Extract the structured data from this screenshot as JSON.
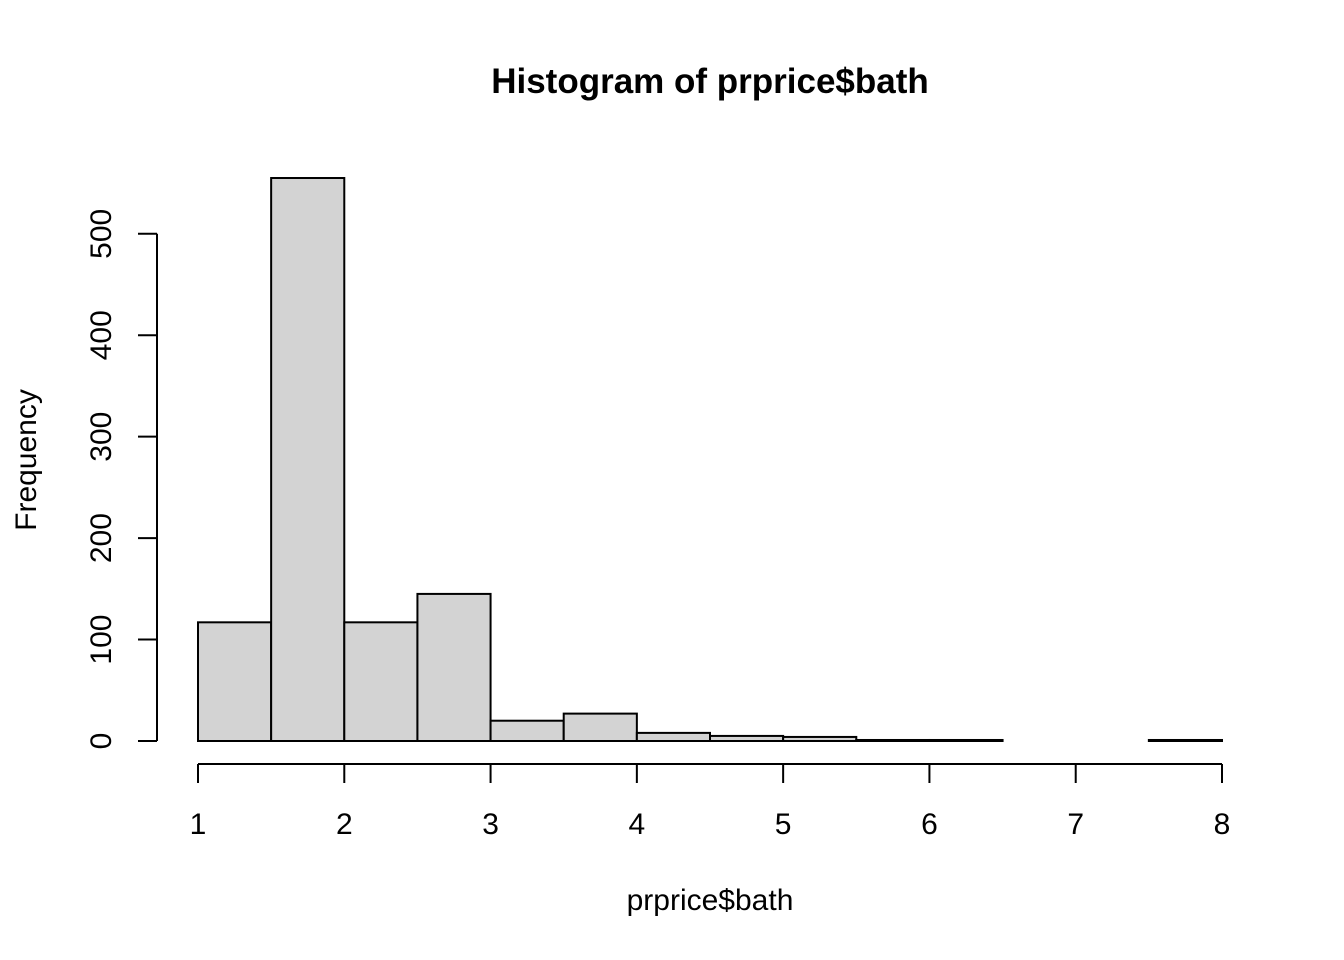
{
  "chart_data": {
    "type": "bar",
    "title": "Histogram of prprice$bath",
    "xlabel": "prprice$bath",
    "ylabel": "Frequency",
    "bin_edges": [
      1,
      1.5,
      2,
      2.5,
      3,
      3.5,
      4,
      4.5,
      5,
      5.5,
      6,
      6.5,
      7,
      7.5,
      8
    ],
    "values": [
      117,
      555,
      117,
      145,
      20,
      27,
      8,
      5,
      4,
      1,
      1,
      0,
      0,
      1
    ],
    "xlim": [
      1,
      8
    ],
    "ylim": [
      0,
      555
    ],
    "x_ticks": [
      "1",
      "2",
      "3",
      "4",
      "5",
      "6",
      "7",
      "8"
    ],
    "y_ticks": [
      "0",
      "100",
      "200",
      "300",
      "400",
      "500"
    ],
    "grid": false,
    "bar_fill": "#d3d3d3",
    "bar_stroke": "#000000"
  }
}
